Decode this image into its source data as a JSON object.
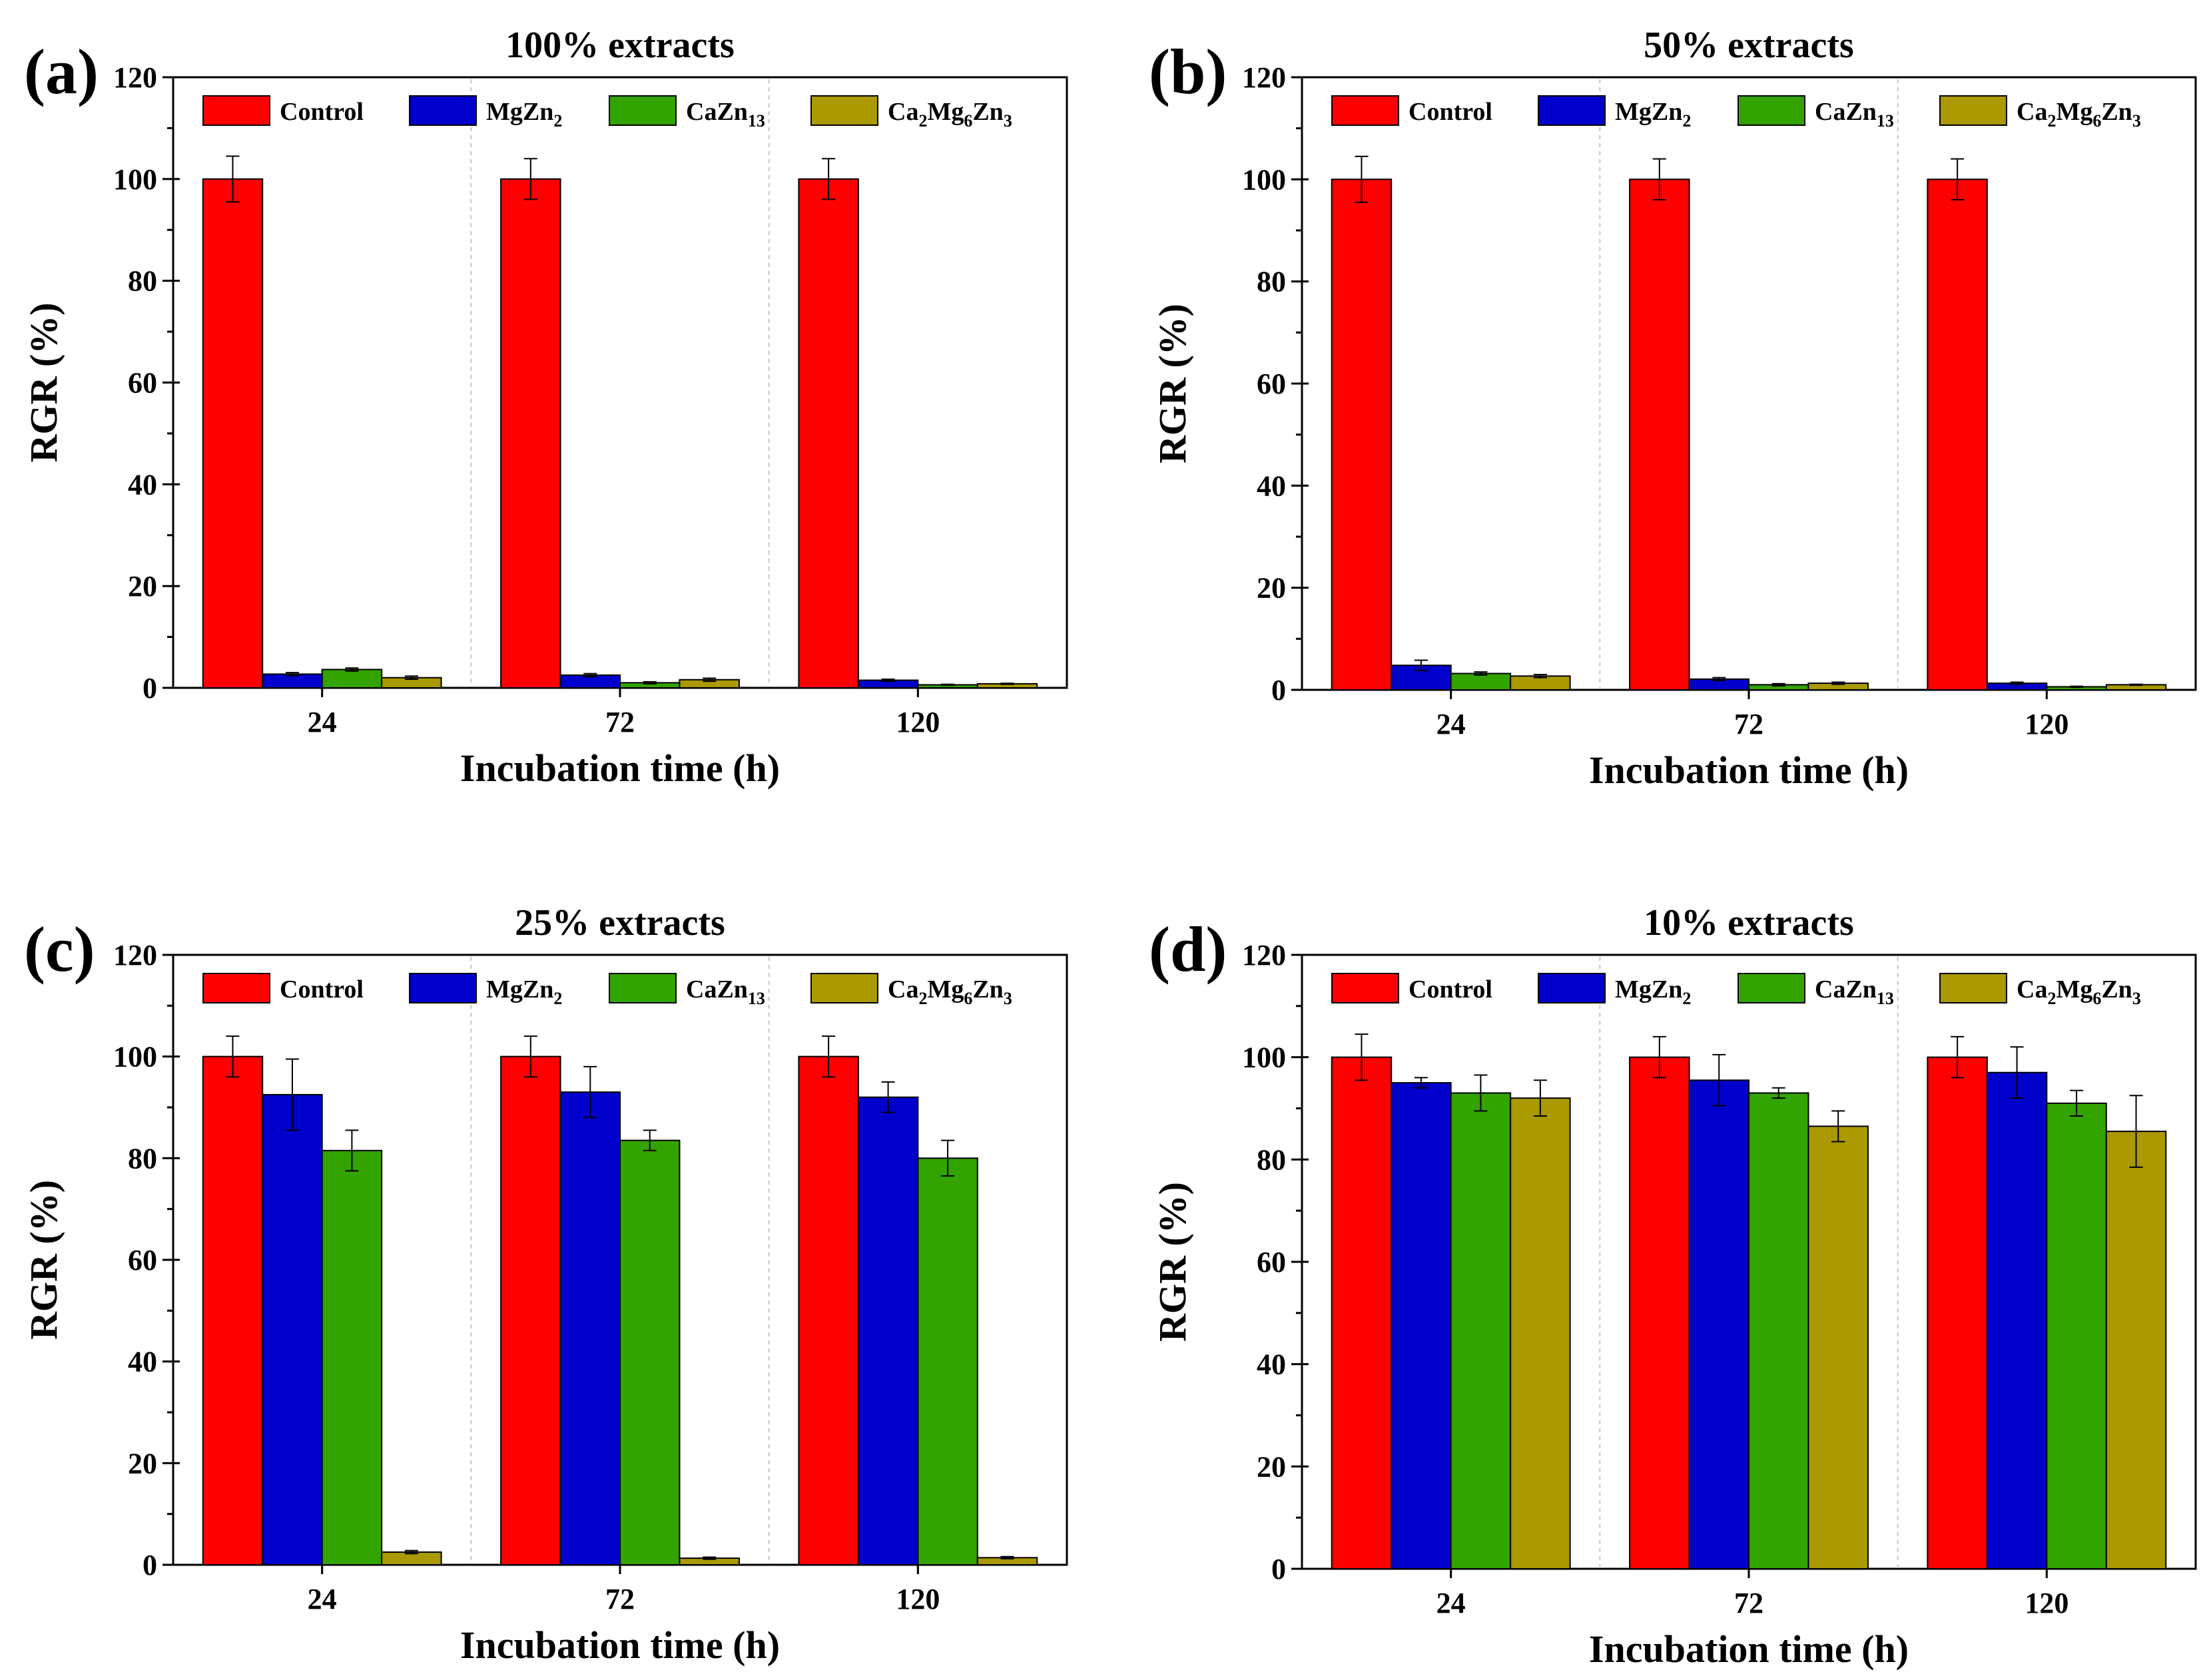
{
  "series_colors": {
    "control": "#ff0000",
    "mgzn2": "#0000cc",
    "cazn13": "#33a300",
    "ca2mg6zn3": "#aa9900"
  },
  "legend": [
    {
      "key": "control",
      "parts": [
        [
          "Control",
          ""
        ]
      ]
    },
    {
      "key": "mgzn2",
      "parts": [
        [
          "MgZn",
          ""
        ],
        [
          "2",
          "sub"
        ]
      ]
    },
    {
      "key": "cazn13",
      "parts": [
        [
          "CaZn",
          ""
        ],
        [
          "13",
          "sub"
        ]
      ]
    },
    {
      "key": "ca2mg6zn3",
      "parts": [
        [
          "Ca",
          ""
        ],
        [
          "2",
          "sub"
        ],
        [
          "Mg",
          ""
        ],
        [
          "6",
          "sub"
        ],
        [
          "Zn",
          ""
        ],
        [
          "3",
          "sub"
        ]
      ]
    }
  ],
  "chart_data": [
    {
      "type": "bar",
      "panel_label": "(a)",
      "title": "100% extracts",
      "xlabel": "Incubation time (h)",
      "ylabel": "RGR (%)",
      "ylim": [
        0,
        120
      ],
      "yticks": [
        "0",
        "20",
        "40",
        "60",
        "80",
        "100",
        "120"
      ],
      "categories": [
        "24",
        "72",
        "120"
      ],
      "series": [
        {
          "name": "Control",
          "key": "control",
          "values": [
            100,
            100,
            100
          ],
          "errors": [
            4.5,
            4,
            4
          ]
        },
        {
          "name": "MgZn2",
          "key": "mgzn2",
          "values": [
            2.7,
            2.5,
            1.5
          ],
          "errors": [
            0.3,
            0.3,
            0.2
          ]
        },
        {
          "name": "CaZn13",
          "key": "cazn13",
          "values": [
            3.6,
            1.0,
            0.6
          ],
          "errors": [
            0.3,
            0.2,
            0.1
          ]
        },
        {
          "name": "Ca2Mg6Zn3",
          "key": "ca2mg6zn3",
          "values": [
            2.0,
            1.6,
            0.8
          ],
          "errors": [
            0.3,
            0.3,
            0.1
          ]
        }
      ]
    },
    {
      "type": "bar",
      "panel_label": "(b)",
      "title": "50% extracts",
      "xlabel": "Incubation time (h)",
      "ylabel": "RGR (%)",
      "ylim": [
        0,
        120
      ],
      "yticks": [
        "0",
        "20",
        "40",
        "60",
        "80",
        "100",
        "120"
      ],
      "categories": [
        "24",
        "72",
        "120"
      ],
      "series": [
        {
          "name": "Control",
          "key": "control",
          "values": [
            100,
            100,
            100
          ],
          "errors": [
            4.5,
            4,
            4
          ]
        },
        {
          "name": "MgZn2",
          "key": "mgzn2",
          "values": [
            4.8,
            2.1,
            1.3
          ],
          "errors": [
            1.0,
            0.3,
            0.2
          ]
        },
        {
          "name": "CaZn13",
          "key": "cazn13",
          "values": [
            3.2,
            1.0,
            0.6
          ],
          "errors": [
            0.3,
            0.2,
            0.1
          ]
        },
        {
          "name": "Ca2Mg6Zn3",
          "key": "ca2mg6zn3",
          "values": [
            2.7,
            1.3,
            1.0
          ],
          "errors": [
            0.3,
            0.2,
            0.1
          ]
        }
      ]
    },
    {
      "type": "bar",
      "panel_label": "(c)",
      "title": "25% extracts",
      "xlabel": "Incubation time (h)",
      "ylabel": "RGR (%)",
      "ylim": [
        0,
        120
      ],
      "yticks": [
        "0",
        "20",
        "40",
        "60",
        "80",
        "100",
        "120"
      ],
      "categories": [
        "24",
        "72",
        "120"
      ],
      "series": [
        {
          "name": "Control",
          "key": "control",
          "values": [
            100,
            100,
            100
          ],
          "errors": [
            4,
            4,
            4
          ]
        },
        {
          "name": "MgZn2",
          "key": "mgzn2",
          "values": [
            92.5,
            93,
            92
          ],
          "errors": [
            7,
            5,
            3
          ]
        },
        {
          "name": "CaZn13",
          "key": "cazn13",
          "values": [
            81.5,
            83.5,
            80
          ],
          "errors": [
            4,
            2,
            3.5
          ]
        },
        {
          "name": "Ca2Mg6Zn3",
          "key": "ca2mg6zn3",
          "values": [
            2.5,
            1.3,
            1.4
          ],
          "errors": [
            0.3,
            0.2,
            0.2
          ]
        }
      ]
    },
    {
      "type": "bar",
      "panel_label": "(d)",
      "title": "10% extracts",
      "xlabel": "Incubation time (h)",
      "ylabel": "RGR (%)",
      "ylim": [
        0,
        120
      ],
      "yticks": [
        "0",
        "20",
        "40",
        "60",
        "80",
        "100",
        "120"
      ],
      "categories": [
        "24",
        "72",
        "120"
      ],
      "series": [
        {
          "name": "Control",
          "key": "control",
          "values": [
            100,
            100,
            100
          ],
          "errors": [
            4.5,
            4,
            4
          ]
        },
        {
          "name": "MgZn2",
          "key": "mgzn2",
          "values": [
            95,
            95.5,
            97
          ],
          "errors": [
            1,
            5,
            5
          ]
        },
        {
          "name": "CaZn13",
          "key": "cazn13",
          "values": [
            93,
            93,
            91
          ],
          "errors": [
            3.5,
            1,
            2.5
          ]
        },
        {
          "name": "Ca2Mg6Zn3",
          "key": "ca2mg6zn3",
          "values": [
            92,
            86.5,
            85.5
          ],
          "errors": [
            3.5,
            3,
            7
          ]
        }
      ]
    }
  ]
}
